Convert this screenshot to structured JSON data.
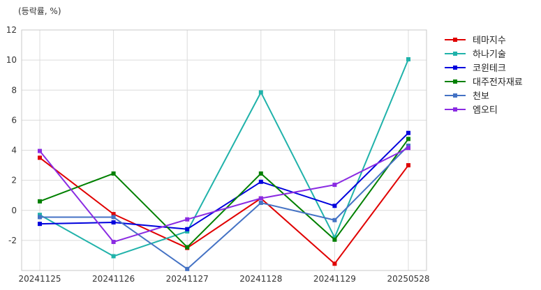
{
  "chart_data": {
    "type": "line",
    "unit_label": "(등락률, %)",
    "x": [
      "20241125",
      "20241126",
      "20241127",
      "20241128",
      "20241129",
      "20250528"
    ],
    "ylim": [
      -4,
      12
    ],
    "yticks": [
      -2,
      0,
      2,
      4,
      6,
      8,
      10,
      12
    ],
    "grid": true,
    "legend_position": "right",
    "series": [
      {
        "name": "테마지수",
        "color": "#e00000",
        "values": [
          3.5,
          -0.25,
          -2.5,
          0.8,
          -3.55,
          3.0
        ]
      },
      {
        "name": "하나기술",
        "color": "#20b2aa",
        "values": [
          -0.3,
          -3.05,
          -1.4,
          7.85,
          -1.8,
          10.05
        ]
      },
      {
        "name": "코윈테크",
        "color": "#0000dd",
        "values": [
          -0.9,
          -0.8,
          -1.25,
          1.9,
          0.3,
          5.15
        ]
      },
      {
        "name": "대주전자재료",
        "color": "#008000",
        "values": [
          0.6,
          2.45,
          -2.45,
          2.45,
          -1.95,
          4.75
        ]
      },
      {
        "name": "천보",
        "color": "#4472c4",
        "values": [
          -0.45,
          -0.45,
          -3.9,
          0.5,
          -0.65,
          4.3
        ]
      },
      {
        "name": "엠오티",
        "color": "#8a2be2",
        "values": [
          3.95,
          -2.1,
          -0.6,
          0.8,
          1.7,
          4.15
        ]
      }
    ]
  }
}
